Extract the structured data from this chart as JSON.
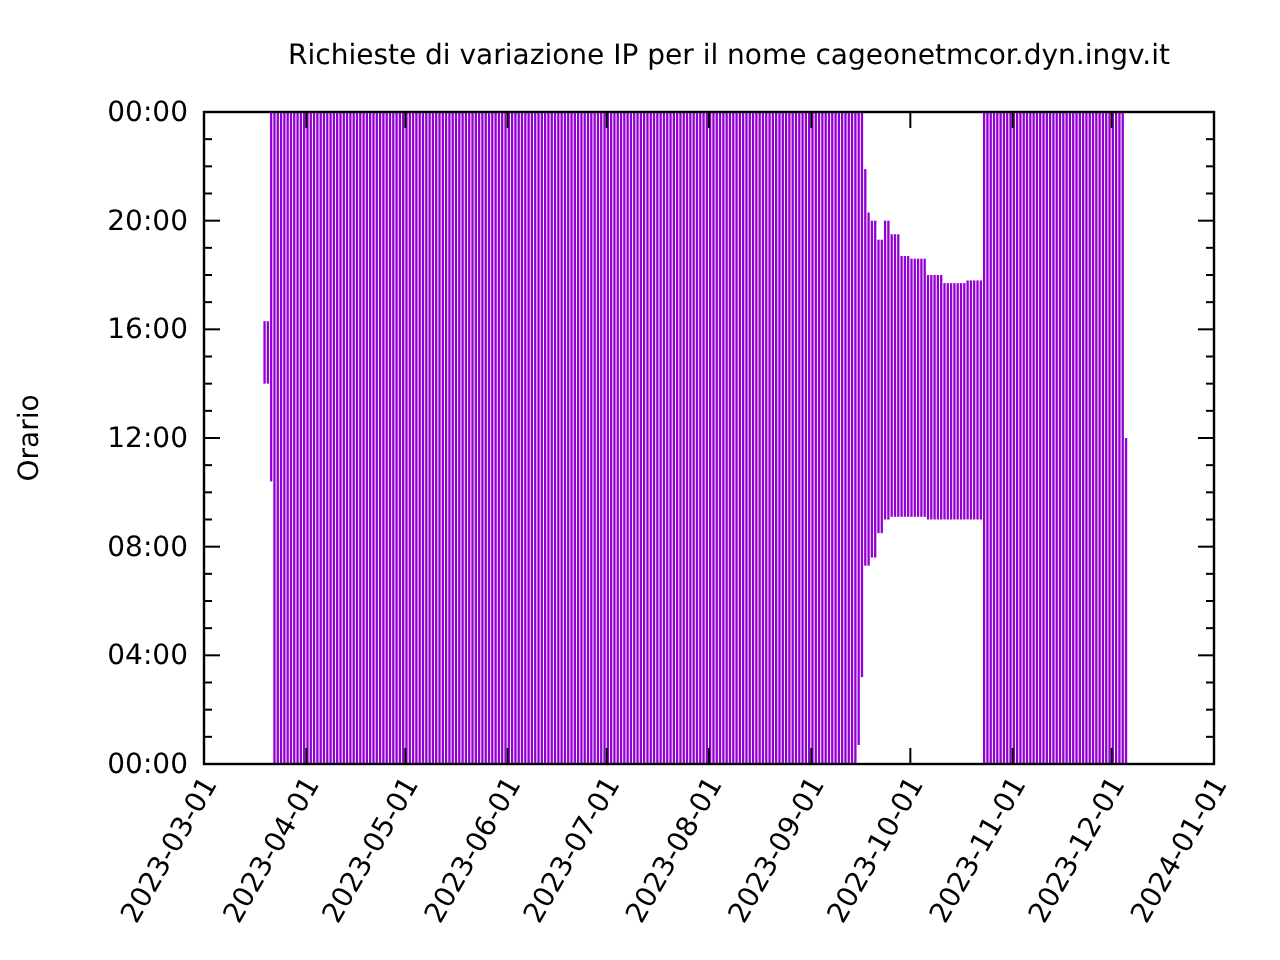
{
  "chart_data": {
    "type": "bar",
    "title": "Richieste di variazione IP per il nome cageonetmcor.dyn.ingv.it",
    "ylabel": "Orario",
    "x": [
      "2023-03-19",
      "2023-03-20",
      "2023-03-21",
      "2023-03-22",
      "2023-03-23",
      "2023-03-24",
      "2023-03-25",
      "2023-03-26",
      "2023-03-27",
      "2023-03-28",
      "2023-03-29",
      "2023-03-30",
      "2023-03-31",
      "2023-04-01",
      "2023-04-02",
      "2023-04-03",
      "2023-04-04",
      "2023-04-05",
      "2023-04-06",
      "2023-04-07",
      "2023-04-08",
      "2023-04-09",
      "2023-04-10",
      "2023-04-11",
      "2023-04-12",
      "2023-04-13",
      "2023-04-14",
      "2023-04-15",
      "2023-04-16",
      "2023-04-17",
      "2023-04-18",
      "2023-04-19",
      "2023-04-20",
      "2023-04-21",
      "2023-04-22",
      "2023-04-23",
      "2023-04-24",
      "2023-04-25",
      "2023-04-26",
      "2023-04-27",
      "2023-04-28",
      "2023-04-29",
      "2023-04-30",
      "2023-05-01",
      "2023-05-02",
      "2023-05-03",
      "2023-05-04",
      "2023-05-05",
      "2023-05-06",
      "2023-05-07",
      "2023-05-08",
      "2023-05-09",
      "2023-05-10",
      "2023-05-11",
      "2023-05-12",
      "2023-05-13",
      "2023-05-14",
      "2023-05-15",
      "2023-05-16",
      "2023-05-17",
      "2023-05-18",
      "2023-05-19",
      "2023-05-20",
      "2023-05-21",
      "2023-05-22",
      "2023-05-23",
      "2023-05-24",
      "2023-05-25",
      "2023-05-26",
      "2023-05-27",
      "2023-05-28",
      "2023-05-29",
      "2023-05-30",
      "2023-05-31",
      "2023-06-01",
      "2023-06-02",
      "2023-06-03",
      "2023-06-04",
      "2023-06-05",
      "2023-06-06",
      "2023-06-07",
      "2023-06-08",
      "2023-06-09",
      "2023-06-10",
      "2023-06-11",
      "2023-06-12",
      "2023-06-13",
      "2023-06-14",
      "2023-06-15",
      "2023-06-16",
      "2023-06-17",
      "2023-06-18",
      "2023-06-19",
      "2023-06-20",
      "2023-06-21",
      "2023-06-22",
      "2023-06-23",
      "2023-06-24",
      "2023-06-25",
      "2023-06-26",
      "2023-06-27",
      "2023-06-28",
      "2023-06-29",
      "2023-06-30",
      "2023-07-01",
      "2023-07-02",
      "2023-07-03",
      "2023-07-04",
      "2023-07-05",
      "2023-07-06",
      "2023-07-07",
      "2023-07-08",
      "2023-07-09",
      "2023-07-10",
      "2023-07-11",
      "2023-07-12",
      "2023-07-13",
      "2023-07-14",
      "2023-07-15",
      "2023-07-16",
      "2023-07-17",
      "2023-07-18",
      "2023-07-19",
      "2023-07-20",
      "2023-07-21",
      "2023-07-22",
      "2023-07-23",
      "2023-07-24",
      "2023-07-25",
      "2023-07-26",
      "2023-07-27",
      "2023-07-28",
      "2023-07-29",
      "2023-07-30",
      "2023-07-31",
      "2023-08-01",
      "2023-08-02",
      "2023-08-03",
      "2023-08-04",
      "2023-08-05",
      "2023-08-06",
      "2023-08-07",
      "2023-08-08",
      "2023-08-09",
      "2023-08-10",
      "2023-08-11",
      "2023-08-12",
      "2023-08-13",
      "2023-08-14",
      "2023-08-15",
      "2023-08-16",
      "2023-08-17",
      "2023-08-18",
      "2023-08-19",
      "2023-08-20",
      "2023-08-21",
      "2023-08-22",
      "2023-08-23",
      "2023-08-24",
      "2023-08-25",
      "2023-08-26",
      "2023-08-27",
      "2023-08-28",
      "2023-08-29",
      "2023-08-30",
      "2023-08-31",
      "2023-09-01",
      "2023-09-02",
      "2023-09-03",
      "2023-09-04",
      "2023-09-05",
      "2023-09-06",
      "2023-09-07",
      "2023-09-08",
      "2023-09-09",
      "2023-09-10",
      "2023-09-11",
      "2023-09-12",
      "2023-09-13",
      "2023-09-14",
      "2023-09-15",
      "2023-09-16",
      "2023-09-17",
      "2023-09-18",
      "2023-09-19",
      "2023-09-20",
      "2023-09-21",
      "2023-09-22",
      "2023-09-23",
      "2023-09-24",
      "2023-09-25",
      "2023-09-26",
      "2023-09-27",
      "2023-09-28",
      "2023-09-29",
      "2023-09-30",
      "2023-10-01",
      "2023-10-02",
      "2023-10-03",
      "2023-10-04",
      "2023-10-05",
      "2023-10-06",
      "2023-10-07",
      "2023-10-08",
      "2023-10-09",
      "2023-10-10",
      "2023-10-11",
      "2023-10-12",
      "2023-10-13",
      "2023-10-14",
      "2023-10-15",
      "2023-10-16",
      "2023-10-17",
      "2023-10-18",
      "2023-10-19",
      "2023-10-20",
      "2023-10-21",
      "2023-10-22",
      "2023-10-23",
      "2023-10-24",
      "2023-10-25",
      "2023-10-26",
      "2023-10-27",
      "2023-10-28",
      "2023-10-29",
      "2023-10-30",
      "2023-10-31",
      "2023-11-01",
      "2023-11-02",
      "2023-11-03",
      "2023-11-04",
      "2023-11-05",
      "2023-11-06",
      "2023-11-07",
      "2023-11-08",
      "2023-11-09",
      "2023-11-10",
      "2023-11-11",
      "2023-11-12",
      "2023-11-13",
      "2023-11-14",
      "2023-11-15",
      "2023-11-16",
      "2023-11-17",
      "2023-11-18",
      "2023-11-19",
      "2023-11-20",
      "2023-11-21",
      "2023-11-22",
      "2023-11-23",
      "2023-11-24",
      "2023-11-25",
      "2023-11-26",
      "2023-11-27",
      "2023-11-28",
      "2023-11-29",
      "2023-11-30",
      "2023-12-01",
      "2023-12-02",
      "2023-12-03",
      "2023-12-04",
      "2023-12-05"
    ],
    "base": [
      14,
      14,
      10.4,
      0,
      0,
      0,
      0,
      0,
      0,
      0,
      0,
      0,
      0,
      0,
      0,
      0,
      0,
      0,
      0,
      0,
      0,
      0,
      0,
      0,
      0,
      0,
      0,
      0,
      0,
      0,
      0,
      0,
      0,
      0,
      0,
      0,
      0,
      0,
      0,
      0,
      0,
      0,
      0,
      0,
      0,
      0,
      0,
      0,
      0,
      0,
      0,
      0,
      0,
      0,
      0,
      0,
      0,
      0,
      0,
      0,
      0,
      0,
      0,
      0,
      0,
      0,
      0,
      0,
      0,
      0,
      0,
      0,
      0,
      0,
      0,
      0,
      0,
      0,
      0,
      0,
      0,
      0,
      0,
      0,
      0,
      0,
      0,
      0,
      0,
      0,
      0,
      0,
      0,
      0,
      0,
      0,
      0,
      0,
      0,
      0,
      0,
      0,
      0,
      0,
      0,
      0,
      0,
      0,
      0,
      0,
      0,
      0,
      0,
      0,
      0,
      0,
      0,
      0,
      0,
      0,
      0,
      0,
      0,
      0,
      0,
      0,
      0,
      0,
      0,
      0,
      0,
      0,
      0,
      0,
      0,
      0,
      0,
      0,
      0,
      0,
      0,
      0,
      0,
      0,
      0,
      0,
      0,
      0,
      0,
      0,
      0,
      0,
      0,
      0,
      0,
      0,
      0,
      0,
      0,
      0,
      0,
      0,
      0,
      0,
      0,
      0,
      0,
      0,
      0,
      0,
      0,
      0,
      0,
      0,
      0,
      0,
      0,
      0,
      0,
      0,
      0.7,
      3.2,
      7.3,
      7.3,
      7.6,
      7.6,
      8.5,
      8.5,
      9.0,
      9.0,
      9.1,
      9.1,
      9.1,
      9.1,
      9.1,
      9.1,
      9.1,
      9.1,
      9.1,
      9.1,
      9.1,
      9.0,
      9.0,
      9.0,
      9.0,
      9.0,
      9.0,
      9.0,
      9.0,
      9.0,
      9.0,
      9.0,
      9.0,
      9.0,
      9.0,
      9.0,
      9.0,
      9.0,
      0,
      0,
      0,
      0,
      0,
      0,
      0,
      0,
      0,
      0,
      0,
      0,
      0,
      0,
      0,
      0,
      0,
      0,
      0,
      0,
      0,
      0,
      0,
      0,
      0,
      0,
      0,
      0,
      0,
      0,
      0,
      0,
      0,
      0,
      0,
      0,
      0,
      0,
      0,
      0,
      0,
      0,
      0,
      0
    ],
    "values": [
      2.3,
      2.3,
      13.6,
      24,
      24,
      24,
      24,
      24,
      24,
      24,
      24,
      24,
      24,
      24,
      24,
      24,
      24,
      24,
      24,
      24,
      24,
      24,
      24,
      24,
      24,
      24,
      24,
      24,
      24,
      24,
      24,
      24,
      24,
      24,
      24,
      24,
      24,
      24,
      24,
      24,
      24,
      24,
      24,
      24,
      24,
      24,
      24,
      24,
      24,
      24,
      24,
      24,
      24,
      24,
      24,
      24,
      24,
      24,
      24,
      24,
      24,
      24,
      24,
      24,
      24,
      24,
      24,
      24,
      24,
      24,
      24,
      24,
      24,
      24,
      24,
      24,
      24,
      24,
      24,
      24,
      24,
      24,
      24,
      24,
      24,
      24,
      24,
      24,
      24,
      24,
      24,
      24,
      24,
      24,
      24,
      24,
      24,
      24,
      24,
      24,
      24,
      24,
      24,
      24,
      24,
      24,
      24,
      24,
      24,
      24,
      24,
      24,
      24,
      24,
      24,
      24,
      24,
      24,
      24,
      24,
      24,
      24,
      24,
      24,
      24,
      24,
      24,
      24,
      24,
      24,
      24,
      24,
      24,
      24,
      24,
      24,
      24,
      24,
      24,
      24,
      24,
      24,
      24,
      24,
      24,
      24,
      24,
      24,
      24,
      24,
      24,
      24,
      24,
      24,
      24,
      24,
      24,
      24,
      24,
      24,
      24,
      24,
      24,
      24,
      24,
      24,
      24,
      24,
      24,
      24,
      24,
      24,
      24,
      24,
      24,
      24,
      24,
      24,
      24,
      24,
      23.3,
      20.8,
      14.6,
      13.0,
      12.4,
      12.4,
      10.8,
      10.8,
      11.0,
      11.0,
      10.4,
      10.4,
      10.4,
      9.6,
      9.6,
      9.6,
      9.5,
      9.5,
      9.5,
      9.5,
      9.5,
      9.0,
      9.0,
      9.0,
      9.0,
      9.0,
      8.7,
      8.7,
      8.7,
      8.7,
      8.7,
      8.7,
      8.7,
      8.8,
      8.8,
      8.8,
      8.8,
      8.8,
      24,
      24,
      24,
      24,
      24,
      24,
      24,
      24,
      24,
      24,
      24,
      24,
      24,
      24,
      24,
      24,
      24,
      24,
      24,
      24,
      24,
      24,
      24,
      24,
      24,
      24,
      24,
      24,
      24,
      24,
      24,
      24,
      24,
      24,
      24,
      24,
      24,
      24,
      24,
      24,
      24,
      24,
      24,
      12
    ],
    "color": "#9400d3",
    "xlim": [
      "2023-03-01",
      "2024-01-01"
    ],
    "xticks": [
      "2023-03-01",
      "2023-04-01",
      "2023-05-01",
      "2023-06-01",
      "2023-07-01",
      "2023-08-01",
      "2023-09-01",
      "2023-10-01",
      "2023-11-01",
      "2023-12-01",
      "2024-01-01"
    ],
    "ylim": [
      0,
      24
    ],
    "yticks": [
      {
        "value": 0,
        "label": "00:00"
      },
      {
        "value": 1,
        "label": null
      },
      {
        "value": 2,
        "label": null
      },
      {
        "value": 3,
        "label": null
      },
      {
        "value": 4,
        "label": "04:00"
      },
      {
        "value": 5,
        "label": null
      },
      {
        "value": 6,
        "label": null
      },
      {
        "value": 7,
        "label": null
      },
      {
        "value": 8,
        "label": "08:00"
      },
      {
        "value": 9,
        "label": null
      },
      {
        "value": 10,
        "label": null
      },
      {
        "value": 11,
        "label": null
      },
      {
        "value": 12,
        "label": "12:00"
      },
      {
        "value": 13,
        "label": null
      },
      {
        "value": 14,
        "label": null
      },
      {
        "value": 15,
        "label": null
      },
      {
        "value": 16,
        "label": "16:00"
      },
      {
        "value": 17,
        "label": null
      },
      {
        "value": 18,
        "label": null
      },
      {
        "value": 19,
        "label": null
      },
      {
        "value": 20,
        "label": "20:00"
      },
      {
        "value": 21,
        "label": null
      },
      {
        "value": 22,
        "label": null
      },
      {
        "value": 23,
        "label": null
      },
      {
        "value": 24,
        "label": "00:00"
      }
    ]
  }
}
